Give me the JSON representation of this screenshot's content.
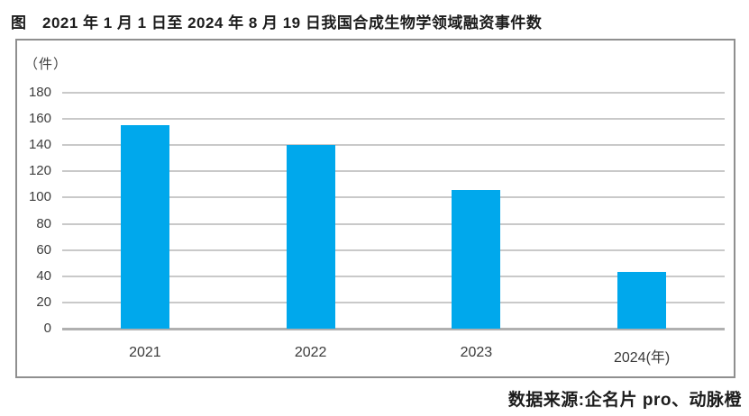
{
  "title": "图　2021 年 1 月 1 日至 2024 年 8 月 19 日我国合成生物学领域融资事件数",
  "source": "数据来源:企名片 pro、动脉橙",
  "colors": {
    "bar": "#00a8ec",
    "gridline": "#c9c9c9",
    "baseline": "#b0b0b0",
    "frame_border": "#8f8f8f",
    "text": "#1c1c1c"
  },
  "chart_data": {
    "type": "bar",
    "title": "图　2021 年 1 月 1 日至 2024 年 8 月 19 日我国合成生物学领域融资事件数",
    "unit_label": "（件）",
    "categories": [
      "2021",
      "2022",
      "2023",
      "2024(年)"
    ],
    "values": [
      155,
      140,
      106,
      43
    ],
    "yticks": [
      0,
      20,
      40,
      60,
      80,
      100,
      120,
      140,
      160,
      180
    ],
    "ylim": [
      0,
      180
    ],
    "xlabel": "年",
    "ylabel": "件",
    "grid": true,
    "legend": false,
    "bar_color": "#00a8ec",
    "source": "数据来源:企名片 pro、动脉橙"
  }
}
